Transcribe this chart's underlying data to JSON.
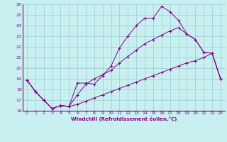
{
  "xlabel": "Windchill (Refroidissement éolien,°C)",
  "background_color": "#c8f0f0",
  "line_color": "#880088",
  "grid_color": "#99cccc",
  "xlim": [
    -0.5,
    23.5
  ],
  "ylim": [
    16,
    26
  ],
  "xticks": [
    0,
    1,
    2,
    3,
    4,
    5,
    6,
    7,
    8,
    9,
    10,
    11,
    12,
    13,
    14,
    15,
    16,
    17,
    18,
    19,
    20,
    21,
    22,
    23
  ],
  "yticks": [
    16,
    17,
    18,
    19,
    20,
    21,
    22,
    23,
    24,
    25,
    26
  ],
  "line1_x": [
    0,
    1,
    2,
    3,
    4,
    5,
    6,
    7,
    8,
    9,
    10,
    11,
    12,
    13,
    14,
    15,
    16,
    17,
    18,
    19,
    20,
    21,
    22,
    23
  ],
  "line1_y": [
    18.9,
    17.8,
    17.0,
    16.2,
    16.5,
    16.4,
    18.6,
    18.6,
    18.5,
    19.3,
    20.2,
    21.9,
    23.0,
    24.0,
    24.7,
    24.7,
    25.8,
    25.3,
    24.5,
    23.2,
    22.7,
    21.5,
    21.4,
    19.0
  ],
  "line2_x": [
    0,
    1,
    2,
    3,
    4,
    5,
    6,
    7,
    8,
    9,
    10,
    11,
    12,
    13,
    14,
    15,
    16,
    17,
    18,
    19,
    20,
    21,
    22,
    23
  ],
  "line2_y": [
    18.9,
    17.8,
    17.0,
    16.2,
    16.5,
    16.4,
    17.5,
    18.5,
    19.0,
    19.4,
    19.8,
    20.5,
    21.1,
    21.7,
    22.3,
    22.7,
    23.1,
    23.5,
    23.8,
    23.2,
    22.7,
    21.5,
    21.4,
    19.0
  ],
  "line3_x": [
    0,
    1,
    2,
    3,
    4,
    5,
    6,
    7,
    8,
    9,
    10,
    11,
    12,
    13,
    14,
    15,
    16,
    17,
    18,
    19,
    20,
    21,
    22,
    23
  ],
  "line3_y": [
    18.9,
    17.8,
    17.0,
    16.2,
    16.5,
    16.4,
    16.6,
    16.9,
    17.2,
    17.5,
    17.8,
    18.1,
    18.4,
    18.7,
    19.0,
    19.3,
    19.6,
    19.9,
    20.2,
    20.5,
    20.7,
    21.0,
    21.4,
    19.0
  ]
}
